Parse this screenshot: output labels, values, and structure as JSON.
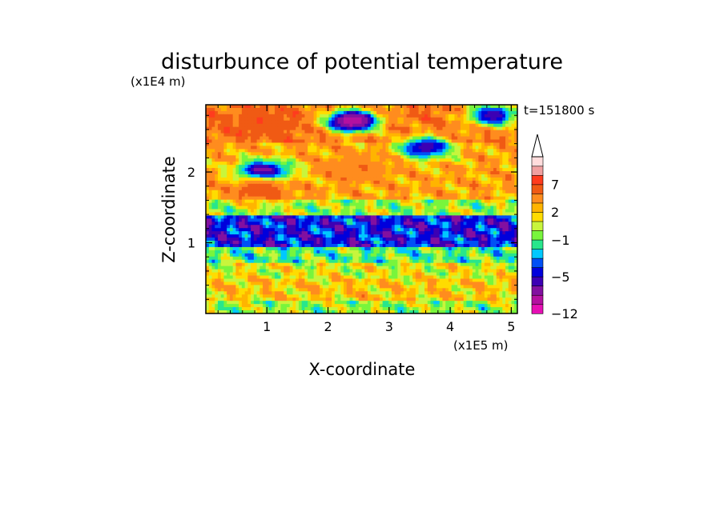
{
  "chart_data": {
    "type": "heatmap",
    "title": "disturbunce of potential temperature",
    "xlabel": "X-coordinate",
    "ylabel": "Z-coordinate",
    "x_unit": "(x1E5 m)",
    "y_unit": "(x1E4 m)",
    "time_label": "t=151800 s",
    "xlim": [
      0,
      5.1
    ],
    "ylim": [
      0,
      2.95
    ],
    "x_ticks": [
      "1",
      "2",
      "3",
      "4",
      "5"
    ],
    "x_tick_values": [
      1,
      2,
      3,
      4,
      5
    ],
    "y_ticks": [
      "1",
      "2"
    ],
    "y_tick_values": [
      1,
      2
    ],
    "colorbar": {
      "levels": [
        -12,
        -10,
        -8,
        -6,
        -5,
        -4,
        -3,
        -2,
        -1,
        0,
        1,
        2,
        3,
        5,
        7,
        9,
        11
      ],
      "colors": [
        "#e60fb4",
        "#b410a0",
        "#8210a0",
        "#3c00b4",
        "#0000dc",
        "#0050f5",
        "#00c8ff",
        "#28e68c",
        "#78f53c",
        "#c8f53c",
        "#ffdc00",
        "#ffb400",
        "#ff8c1e",
        "#f05a14",
        "#ff3c1e",
        "#f0a0a0",
        "#ffdcdc"
      ],
      "tick_labels": [
        "-12",
        "-5",
        "-1",
        "2",
        "7"
      ],
      "tick_values": [
        -12,
        -5,
        -1,
        2,
        7
      ],
      "extend": "max"
    },
    "bands": [
      {
        "z_range": [
          0.0,
          0.2
        ],
        "typical_value": 0
      },
      {
        "z_range": [
          0.2,
          0.5
        ],
        "typical_value": 2
      },
      {
        "z_range": [
          0.5,
          0.7
        ],
        "typical_value": 1
      },
      {
        "z_range": [
          0.7,
          0.95
        ],
        "typical_value": -1
      },
      {
        "z_range": [
          0.95,
          1.4
        ],
        "typical_value": -4.5
      },
      {
        "z_range": [
          1.4,
          1.6
        ],
        "typical_value": 0
      },
      {
        "z_range": [
          1.6,
          2.4
        ],
        "typical_value": 3
      },
      {
        "z_range": [
          2.4,
          2.95
        ],
        "typical_value": 5
      }
    ],
    "features": [
      {
        "kind": "warm",
        "x": 0.95,
        "z": 2.7,
        "value": 7
      },
      {
        "kind": "cold",
        "x": 2.4,
        "z": 2.72,
        "value": -10
      },
      {
        "kind": "cold",
        "x": 3.6,
        "z": 2.35,
        "value": -6
      },
      {
        "kind": "cold",
        "x": 0.95,
        "z": 2.0,
        "value": -8
      },
      {
        "kind": "warm",
        "x": 2.5,
        "z": 2.05,
        "value": 5
      },
      {
        "kind": "warm",
        "x": 0.9,
        "z": 1.75,
        "value": 7
      },
      {
        "kind": "cold",
        "x": 4.7,
        "z": 2.8,
        "value": -6
      }
    ]
  }
}
